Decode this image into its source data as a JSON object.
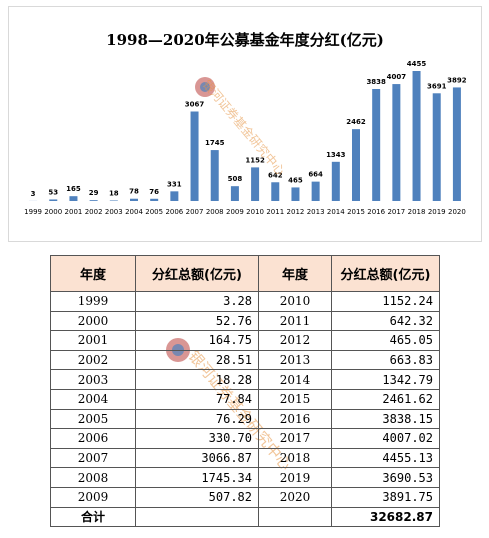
{
  "chart_data": {
    "type": "bar",
    "title": "1998—2020年公募基金年度分红(亿元)",
    "color": "#4f81bd",
    "categories": [
      "1999",
      "2000",
      "2001",
      "2002",
      "2003",
      "2004",
      "2005",
      "2006",
      "2007",
      "2008",
      "2009",
      "2010",
      "2011",
      "2012",
      "2013",
      "2014",
      "2015",
      "2016",
      "2017",
      "2018",
      "2019",
      "2020"
    ],
    "values": [
      3,
      53,
      165,
      29,
      18,
      78,
      76,
      331,
      3067,
      1745,
      508,
      1152,
      642,
      465,
      664,
      1343,
      2462,
      3838,
      4007,
      4455,
      3691,
      3892
    ]
  },
  "watermark": "银河证券基金研究中心",
  "table": {
    "header": [
      "年度",
      "分红总额(亿元)",
      "年度",
      "分红总额(亿元)"
    ],
    "rows": [
      [
        "1999",
        "3.28",
        "2010",
        "1152.24"
      ],
      [
        "2000",
        "52.76",
        "2011",
        "642.32"
      ],
      [
        "2001",
        "164.75",
        "2012",
        "465.05"
      ],
      [
        "2002",
        "28.51",
        "2013",
        "663.83"
      ],
      [
        "2003",
        "18.28",
        "2014",
        "1342.79"
      ],
      [
        "2004",
        "77.84",
        "2015",
        "2461.62"
      ],
      [
        "2005",
        "76.29",
        "2016",
        "3838.15"
      ],
      [
        "2006",
        "330.70",
        "2017",
        "4007.02"
      ],
      [
        "2007",
        "3066.87",
        "2018",
        "4455.13"
      ],
      [
        "2008",
        "1745.34",
        "2019",
        "3690.53"
      ],
      [
        "2009",
        "507.82",
        "2020",
        "3891.75"
      ]
    ],
    "total": {
      "label": "合计",
      "value": "32682.87"
    }
  }
}
